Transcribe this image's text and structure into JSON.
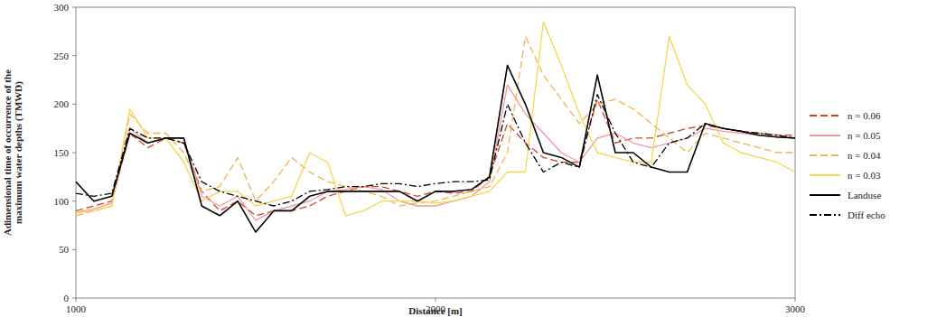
{
  "chart_data": {
    "type": "line",
    "y_label": [
      "Adimensional time of occurrence of the",
      "maximum water depths (TMWD)"
    ],
    "x_label": "Distance [m]",
    "x": [
      1000,
      1050,
      1100,
      1150,
      1200,
      1250,
      1300,
      1350,
      1400,
      1450,
      1500,
      1550,
      1600,
      1650,
      1700,
      1750,
      1800,
      1850,
      1900,
      1950,
      2000,
      2050,
      2100,
      2150,
      2200,
      2250,
      2300,
      2350,
      2400,
      2450,
      2500,
      2550,
      2600,
      2650,
      2700,
      2750,
      2800,
      2850,
      2900,
      2950,
      3000
    ],
    "series": [
      {
        "name": "n = 0.06",
        "color": "#d9402b",
        "line_style": "dashed",
        "values": [
          90,
          95,
          100,
          170,
          155,
          165,
          160,
          110,
          90,
          100,
          85,
          90,
          90,
          95,
          105,
          110,
          115,
          115,
          110,
          105,
          110,
          108,
          110,
          125,
          180,
          160,
          145,
          140,
          140,
          205,
          160,
          165,
          165,
          170,
          175,
          178,
          175,
          172,
          170,
          168,
          168
        ]
      },
      {
        "name": "n = 0.05",
        "color": "#f29a9a",
        "line_style": "solid",
        "values": [
          88,
          92,
          98,
          175,
          160,
          165,
          165,
          105,
          95,
          105,
          80,
          90,
          95,
          100,
          110,
          112,
          115,
          112,
          100,
          95,
          95,
          100,
          105,
          120,
          220,
          190,
          170,
          150,
          140,
          165,
          170,
          160,
          155,
          160,
          165,
          175,
          172,
          170,
          168,
          166,
          165
        ]
      },
      {
        "name": "n = 0.04",
        "color": "#f5b24a",
        "line_style": "dashed",
        "values": [
          85,
          90,
          95,
          190,
          170,
          170,
          150,
          110,
          115,
          145,
          100,
          120,
          145,
          130,
          120,
          115,
          110,
          105,
          95,
          98,
          100,
          105,
          110,
          115,
          150,
          270,
          230,
          205,
          180,
          200,
          205,
          195,
          180,
          165,
          150,
          170,
          165,
          160,
          155,
          150,
          150
        ]
      },
      {
        "name": "n = 0.03",
        "color": "#f7d64a",
        "line_style": "solid",
        "values": [
          88,
          90,
          95,
          195,
          165,
          165,
          140,
          100,
          110,
          110,
          95,
          100,
          105,
          150,
          140,
          85,
          90,
          100,
          100,
          100,
          98,
          100,
          105,
          110,
          130,
          130,
          285,
          240,
          190,
          150,
          145,
          140,
          140,
          270,
          220,
          200,
          160,
          150,
          145,
          140,
          130
        ]
      },
      {
        "name": "Landuse",
        "color": "#000000",
        "line_style": "solid",
        "values": [
          120,
          100,
          105,
          170,
          160,
          165,
          165,
          95,
          85,
          100,
          68,
          90,
          90,
          105,
          110,
          110,
          110,
          110,
          110,
          100,
          110,
          110,
          112,
          125,
          240,
          200,
          150,
          145,
          135,
          230,
          150,
          150,
          135,
          130,
          130,
          180,
          175,
          172,
          168,
          166,
          165
        ]
      },
      {
        "name": "Diff echo",
        "color": "#000000",
        "line_style": "dashdot",
        "values": [
          108,
          105,
          108,
          175,
          165,
          165,
          160,
          120,
          110,
          105,
          100,
          95,
          100,
          110,
          112,
          115,
          115,
          118,
          118,
          115,
          118,
          120,
          120,
          122,
          200,
          160,
          130,
          140,
          135,
          210,
          170,
          140,
          135,
          160,
          165,
          180,
          175,
          172,
          170,
          168,
          165
        ]
      }
    ],
    "xlim": [
      1000,
      3000
    ],
    "xticks": [
      1000,
      2000,
      3000
    ],
    "ylim": [
      0,
      300
    ],
    "yticks": [
      0,
      50,
      100,
      150,
      200,
      250,
      300
    ],
    "grid": false,
    "legend": "right"
  }
}
